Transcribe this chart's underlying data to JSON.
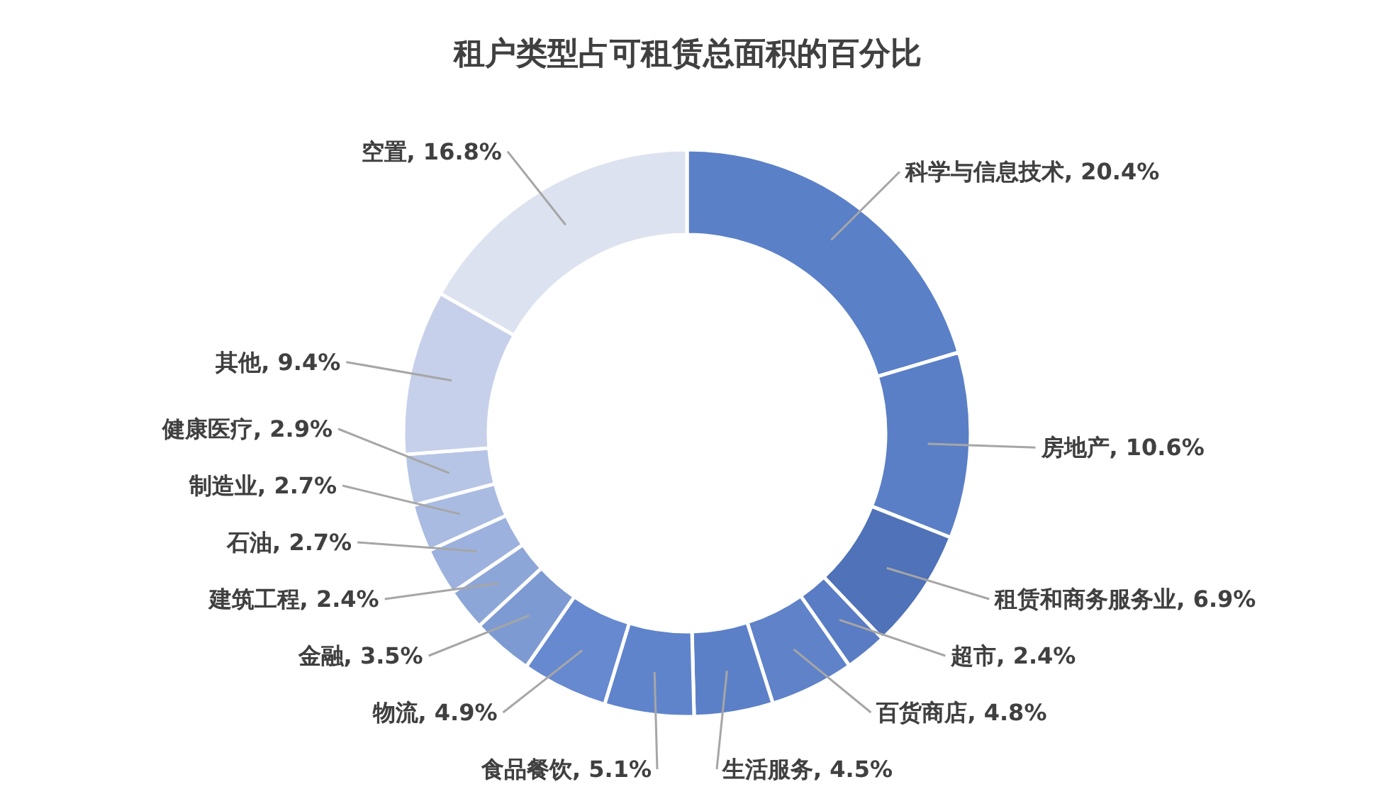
{
  "chart_data": {
    "type": "donut",
    "title": "租户类型占可租赁总面积的百分比",
    "categories": [
      "科学与信息技术",
      "房地产",
      "租赁和商务服务业",
      "超市",
      "百货商店",
      "生活服务",
      "食品餐饮",
      "物流",
      "金融",
      "建筑工程",
      "石油",
      "制造业",
      "健康医疗",
      "其他",
      "空置"
    ],
    "values": [
      20.4,
      10.6,
      6.9,
      2.4,
      4.8,
      4.5,
      5.1,
      4.9,
      3.5,
      2.4,
      2.7,
      2.7,
      2.9,
      9.4,
      16.8
    ],
    "value_labels": [
      "20.4%",
      "10.6%",
      "6.9%",
      "2.4%",
      "4.8%",
      "4.5%",
      "5.1%",
      "4.9%",
      "3.5%",
      "2.4%",
      "2.7%",
      "2.7%",
      "2.9%",
      "9.4%",
      "16.8%"
    ],
    "colors": [
      "#5a80c8",
      "#5a7fc6",
      "#4f72b8",
      "#5a7cc4",
      "#5f82c9",
      "#5c80c8",
      "#5f84cc",
      "#6689d0",
      "#7d9ad2",
      "#8da6d8",
      "#9cb1dd",
      "#a9bbe1",
      "#b6c5e5",
      "#c6d0ea",
      "#dde2f0"
    ]
  }
}
